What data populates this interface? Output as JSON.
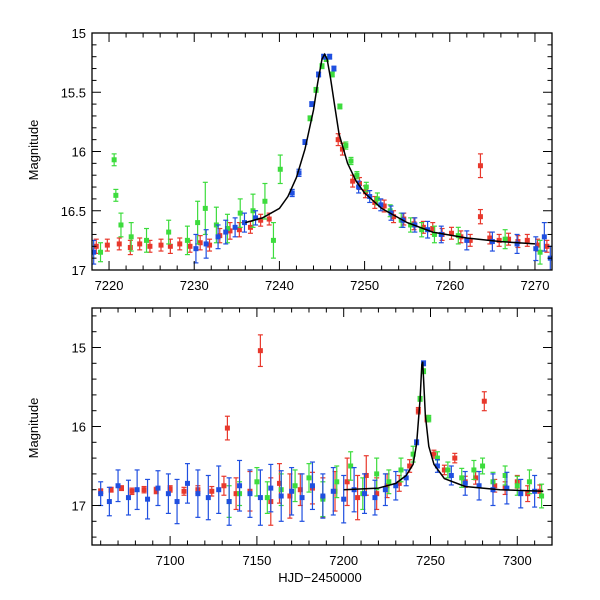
{
  "chart_data": [
    {
      "type": "scatter",
      "panel": "top",
      "title": "",
      "xlabel": "",
      "ylabel": "Magnitude",
      "xlim": [
        7218,
        7272
      ],
      "ylim": [
        17.0,
        15.0
      ],
      "y_inverted": true,
      "x_ticks": [
        7220,
        7230,
        7240,
        7250,
        7260,
        7270
      ],
      "x_tick_labels": [
        "7220",
        "7230",
        "7240",
        "7250",
        "7260",
        "7270"
      ],
      "y_ticks": [
        15,
        15.5,
        16,
        16.5,
        17
      ],
      "y_tick_labels": [
        "15",
        "15.5",
        "16",
        "16.5",
        "17"
      ],
      "model": {
        "name": "microlensing model",
        "color": "#000000",
        "x": [
          7236,
          7238,
          7240,
          7241,
          7242,
          7243,
          7244,
          7244.5,
          7245,
          7245.3,
          7245.6,
          7246,
          7246.5,
          7247,
          7248,
          7249,
          7250,
          7252,
          7255,
          7258,
          7262,
          7266,
          7270
        ],
        "y": [
          16.6,
          16.56,
          16.48,
          16.38,
          16.22,
          15.98,
          15.65,
          15.42,
          15.22,
          15.18,
          15.22,
          15.38,
          15.62,
          15.85,
          16.1,
          16.25,
          16.35,
          16.48,
          16.6,
          16.68,
          16.73,
          16.76,
          16.78
        ]
      },
      "series": [
        {
          "name": "red",
          "color": "#e8382c",
          "x": [
            7218.5,
            7219.8,
            7221.2,
            7222.5,
            7223.6,
            7224.8,
            7226.1,
            7227.2,
            7228.3,
            7229.5,
            7230.7,
            7231.8,
            7233.0,
            7234.2,
            7235.3,
            7236.6,
            7237.8,
            7238.8,
            7246.9,
            7247.4,
            7248.6,
            7249.4,
            7250.1,
            7251.2,
            7252.3,
            7253.4,
            7254.6,
            7255.8,
            7256.9,
            7258.0,
            7259.1,
            7260.2,
            7261.3,
            7262.4,
            7263.6,
            7263.6,
            7264.7,
            7265.8,
            7266.9,
            7268.0,
            7269.1,
            7270.3,
            7271.4
          ],
          "y": [
            16.8,
            16.79,
            16.78,
            16.81,
            16.78,
            16.8,
            16.79,
            16.8,
            16.78,
            16.8,
            16.77,
            16.79,
            16.71,
            16.67,
            16.66,
            16.64,
            16.58,
            16.57,
            15.9,
            15.98,
            16.25,
            16.27,
            16.34,
            16.43,
            16.46,
            16.55,
            16.57,
            16.61,
            16.64,
            16.65,
            16.7,
            16.69,
            16.72,
            16.75,
            16.55,
            16.12,
            16.73,
            16.75,
            16.74,
            16.76,
            16.75,
            16.79,
            16.8
          ],
          "err": [
            0.06,
            0.05,
            0.05,
            0.06,
            0.05,
            0.05,
            0.05,
            0.06,
            0.05,
            0.05,
            0.06,
            0.05,
            0.06,
            0.07,
            0.06,
            0.05,
            0.05,
            0.05,
            0.05,
            0.05,
            0.05,
            0.05,
            0.05,
            0.05,
            0.05,
            0.05,
            0.05,
            0.05,
            0.05,
            0.05,
            0.05,
            0.05,
            0.05,
            0.05,
            0.06,
            0.1,
            0.05,
            0.05,
            0.05,
            0.05,
            0.05,
            0.05,
            0.05
          ]
        },
        {
          "name": "green",
          "color": "#3ddc3d",
          "x": [
            7219.0,
            7220.6,
            7220.8,
            7221.4,
            7222.6,
            7224.4,
            7227.0,
            7229.2,
            7230.4,
            7231.3,
            7232.6,
            7233.9,
            7235.4,
            7236.9,
            7238.3,
            7239.3,
            7240.1,
            7243.6,
            7244.3,
            7245.0,
            7245.5,
            7246.2,
            7247.1,
            7247.8,
            7248.4,
            7249.1,
            7250.2,
            7251.5,
            7253.0,
            7254.3,
            7255.4,
            7256.7,
            7258.2,
            7261.0,
            7266.5,
            7270.6
          ],
          "y": [
            16.85,
            16.07,
            16.37,
            16.62,
            16.72,
            16.75,
            16.68,
            16.75,
            16.6,
            16.48,
            16.62,
            16.65,
            16.52,
            16.5,
            16.42,
            16.75,
            16.15,
            15.72,
            15.48,
            15.28,
            15.22,
            15.35,
            15.62,
            15.95,
            16.08,
            16.2,
            16.3,
            16.4,
            16.5,
            16.58,
            16.62,
            16.66,
            16.7,
            16.71,
            16.74,
            16.85
          ],
          "err": [
            0.08,
            0.05,
            0.05,
            0.1,
            0.12,
            0.1,
            0.1,
            0.12,
            0.18,
            0.22,
            0.15,
            0.12,
            0.12,
            0.14,
            0.15,
            0.15,
            0.12,
            0.02,
            0.02,
            0.02,
            0.02,
            0.02,
            0.02,
            0.03,
            0.03,
            0.03,
            0.04,
            0.05,
            0.05,
            0.06,
            0.06,
            0.06,
            0.07,
            0.07,
            0.08,
            0.1
          ]
        },
        {
          "name": "blue",
          "color": "#1f4fe0",
          "x": [
            7218.2,
            7230.2,
            7231.4,
            7232.8,
            7233.7,
            7234.8,
            7235.9,
            7237.2,
            7241.5,
            7242.3,
            7243.0,
            7243.8,
            7244.6,
            7245.2,
            7245.9,
            7246.4,
            7249.3,
            7250.6,
            7251.9,
            7253.1,
            7254.5,
            7255.9,
            7257.4,
            7259.0,
            7262.0,
            7265.0,
            7267.9,
            7270.1,
            7271.1,
            7271.8
          ],
          "y": [
            16.85,
            16.82,
            16.78,
            16.72,
            16.68,
            16.64,
            16.6,
            16.56,
            16.35,
            16.18,
            15.92,
            15.6,
            15.35,
            15.2,
            15.2,
            15.3,
            16.3,
            16.38,
            16.45,
            16.52,
            16.58,
            16.62,
            16.66,
            16.7,
            16.75,
            16.76,
            16.78,
            16.82,
            16.72,
            16.9
          ],
          "err": [
            0.1,
            0.12,
            0.12,
            0.1,
            0.1,
            0.08,
            0.08,
            0.06,
            0.03,
            0.03,
            0.02,
            0.02,
            0.02,
            0.02,
            0.02,
            0.02,
            0.05,
            0.05,
            0.05,
            0.06,
            0.06,
            0.06,
            0.07,
            0.07,
            0.08,
            0.08,
            0.08,
            0.1,
            0.12,
            0.1
          ]
        }
      ]
    },
    {
      "type": "scatter",
      "panel": "bottom",
      "title": "",
      "xlabel": "HJD−2450000",
      "ylabel": "Magnitude",
      "xlim": [
        7055,
        7320
      ],
      "ylim": [
        17.5,
        14.5
      ],
      "y_inverted": true,
      "x_ticks": [
        7100,
        7150,
        7200,
        7250,
        7300
      ],
      "x_tick_labels": [
        "7100",
        "7150",
        "7200",
        "7250",
        "7300"
      ],
      "y_ticks": [
        15,
        16,
        17
      ],
      "y_tick_labels": [
        "15",
        "16",
        "17"
      ],
      "model": {
        "name": "microlensing model",
        "color": "#000000",
        "x": [
          7200,
          7220,
          7230,
          7236,
          7240,
          7242,
          7244,
          7245,
          7245.5,
          7246,
          7247,
          7249,
          7252,
          7258,
          7270,
          7290,
          7315
        ],
        "y": [
          16.8,
          16.78,
          16.72,
          16.62,
          16.48,
          16.22,
          15.65,
          15.22,
          15.18,
          15.38,
          15.85,
          16.25,
          16.48,
          16.66,
          16.76,
          16.8,
          16.82
        ],
        "err": []
      },
      "series": [
        {
          "name": "red",
          "color": "#e8382c",
          "x": [
            7060,
            7066,
            7072,
            7078,
            7085,
            7092,
            7100,
            7108,
            7116,
            7124,
            7131,
            7133,
            7138,
            7146,
            7152,
            7158,
            7163,
            7169,
            7175,
            7182,
            7188,
            7195,
            7202,
            7208,
            7213,
            7219,
            7225,
            7232,
            7238,
            7243,
            7248,
            7252,
            7258,
            7264,
            7270,
            7276,
            7281,
            7287,
            7293,
            7300,
            7306,
            7313
          ],
          "y": [
            16.82,
            16.8,
            16.78,
            16.82,
            16.8,
            16.81,
            16.79,
            16.82,
            16.8,
            16.82,
            16.75,
            16.02,
            16.85,
            16.82,
            15.04,
            16.95,
            16.72,
            16.88,
            16.8,
            16.78,
            16.9,
            16.82,
            16.7,
            16.9,
            16.62,
            16.85,
            16.75,
            16.72,
            16.5,
            15.8,
            15.9,
            16.35,
            16.55,
            16.4,
            16.7,
            16.65,
            15.68,
            16.75,
            16.78,
            16.7,
            16.85,
            16.82
          ],
          "err": [
            0.03,
            0.03,
            0.03,
            0.04,
            0.04,
            0.04,
            0.04,
            0.05,
            0.05,
            0.06,
            0.12,
            0.15,
            0.2,
            0.25,
            0.2,
            0.3,
            0.25,
            0.28,
            0.2,
            0.2,
            0.25,
            0.25,
            0.3,
            0.28,
            0.25,
            0.2,
            0.15,
            0.1,
            0.08,
            0.04,
            0.04,
            0.05,
            0.06,
            0.06,
            0.07,
            0.08,
            0.12,
            0.08,
            0.08,
            0.08,
            0.1,
            0.08
          ]
        },
        {
          "name": "green",
          "color": "#3ddc3d",
          "x": [
            7134,
            7140,
            7150,
            7156,
            7164,
            7172,
            7180,
            7188,
            7196,
            7204,
            7211,
            7219,
            7226,
            7233,
            7240,
            7244,
            7246,
            7249,
            7254,
            7260,
            7268,
            7275,
            7280,
            7286,
            7293,
            7300,
            7307,
            7314
          ],
          "y": [
            16.95,
            16.85,
            16.7,
            16.9,
            16.8,
            16.75,
            16.65,
            16.92,
            16.7,
            16.5,
            16.85,
            16.6,
            16.7,
            16.55,
            16.35,
            15.65,
            15.3,
            15.9,
            16.4,
            16.55,
            16.65,
            16.55,
            16.5,
            16.7,
            16.62,
            16.75,
            16.7,
            16.88
          ],
          "err": [
            0.2,
            0.15,
            0.18,
            0.2,
            0.2,
            0.2,
            0.18,
            0.22,
            0.2,
            0.18,
            0.2,
            0.2,
            0.15,
            0.15,
            0.1,
            0.03,
            0.03,
            0.04,
            0.08,
            0.1,
            0.12,
            0.12,
            0.1,
            0.12,
            0.12,
            0.12,
            0.15,
            0.15
          ]
        },
        {
          "name": "blue",
          "color": "#1f4fe0",
          "x": [
            7060,
            7065,
            7070,
            7076,
            7081,
            7087,
            7093,
            7099,
            7104,
            7110,
            7116,
            7122,
            7128,
            7134,
            7140,
            7146,
            7152,
            7158,
            7164,
            7170,
            7176,
            7182,
            7188,
            7194,
            7200,
            7206,
            7212,
            7218,
            7224,
            7230,
            7236,
            7242,
            7246,
            7254,
            7262,
            7270,
            7278,
            7286,
            7294,
            7302,
            7310
          ],
          "y": [
            16.85,
            16.95,
            16.75,
            16.9,
            16.8,
            16.92,
            16.78,
            16.85,
            16.95,
            16.72,
            16.85,
            16.9,
            16.8,
            16.95,
            16.75,
            16.85,
            16.9,
            16.78,
            16.88,
            16.82,
            16.9,
            16.75,
            16.88,
            16.82,
            16.92,
            16.8,
            16.85,
            16.9,
            16.8,
            16.75,
            16.65,
            16.2,
            15.2,
            16.5,
            16.62,
            16.72,
            16.75,
            16.8,
            16.78,
            16.85,
            16.82
          ],
          "err": [
            0.15,
            0.18,
            0.2,
            0.22,
            0.25,
            0.25,
            0.22,
            0.25,
            0.28,
            0.25,
            0.3,
            0.28,
            0.3,
            0.3,
            0.32,
            0.3,
            0.35,
            0.3,
            0.32,
            0.3,
            0.3,
            0.3,
            0.28,
            0.3,
            0.3,
            0.28,
            0.25,
            0.22,
            0.2,
            0.18,
            0.1,
            0.03,
            0.03,
            0.08,
            0.12,
            0.15,
            0.18,
            0.2,
            0.2,
            0.18,
            0.2
          ]
        }
      ]
    }
  ]
}
